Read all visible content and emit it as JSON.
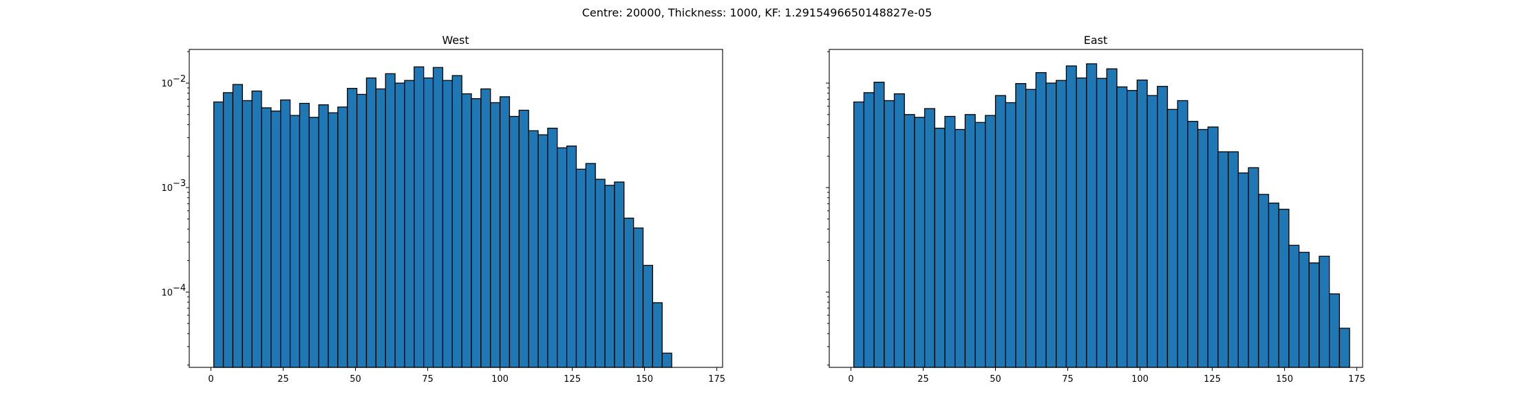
{
  "figure_title": "Centre: 20000, Thickness: 1000, KF: 1.2915496650148827e-05",
  "colors": {
    "bar": "#1f77b4",
    "edge": "#000000"
  },
  "chart_data": [
    {
      "type": "bar",
      "title": "West",
      "xlabel": "",
      "ylabel": "",
      "yscale": "log",
      "xlim": [
        -7.5,
        177
      ],
      "ylim": [
        1.9e-05,
        0.021
      ],
      "xticks": [
        0,
        25,
        50,
        75,
        100,
        125,
        150,
        175
      ],
      "xtick_labels": [
        "0",
        "25",
        "50",
        "75",
        "100",
        "125",
        "150",
        "175"
      ],
      "yticks": [
        0.0001,
        0.001,
        0.01
      ],
      "ytick_labels": [
        "10",
        "10",
        "10"
      ],
      "ytick_exponents": [
        "−4",
        "−3",
        "−2"
      ],
      "grid": false,
      "bin_edges_start": 1,
      "bin_width": 3.3,
      "values": [
        0.0066,
        0.0081,
        0.0097,
        0.0068,
        0.0084,
        0.0058,
        0.0054,
        0.0069,
        0.0049,
        0.0064,
        0.0047,
        0.0062,
        0.0052,
        0.0059,
        0.0089,
        0.0078,
        0.0112,
        0.0088,
        0.0123,
        0.01,
        0.0106,
        0.0143,
        0.0112,
        0.0141,
        0.0106,
        0.0118,
        0.0079,
        0.0071,
        0.0088,
        0.0065,
        0.0074,
        0.0048,
        0.0055,
        0.0035,
        0.0032,
        0.0037,
        0.0024,
        0.0025,
        0.0015,
        0.0017,
        0.0012,
        0.00105,
        0.00113,
        0.00051,
        0.00041,
        0.00018,
        7.9e-05,
        2.6e-05
      ]
    },
    {
      "type": "bar",
      "title": "East",
      "xlabel": "",
      "ylabel": "",
      "yscale": "log",
      "xlim": [
        -7.5,
        177
      ],
      "ylim": [
        1.9e-05,
        0.021
      ],
      "xticks": [
        0,
        25,
        50,
        75,
        100,
        125,
        150,
        175
      ],
      "xtick_labels": [
        "0",
        "25",
        "50",
        "75",
        "100",
        "125",
        "150",
        "175"
      ],
      "yticks": [
        0.0001,
        0.001,
        0.01
      ],
      "ytick_labels": [],
      "ytick_exponents": [],
      "grid": false,
      "bin_edges_start": 1,
      "bin_width": 3.5,
      "values": [
        0.0066,
        0.0081,
        0.0102,
        0.0068,
        0.0079,
        0.005,
        0.0047,
        0.0057,
        0.0037,
        0.0048,
        0.0036,
        0.005,
        0.0042,
        0.0049,
        0.0076,
        0.0065,
        0.0099,
        0.0087,
        0.0126,
        0.01,
        0.0106,
        0.0146,
        0.0112,
        0.0153,
        0.0111,
        0.0137,
        0.0092,
        0.0085,
        0.0107,
        0.0076,
        0.0093,
        0.0056,
        0.0068,
        0.0043,
        0.0036,
        0.0038,
        0.0022,
        0.0022,
        0.00138,
        0.00155,
        0.00086,
        0.00071,
        0.00062,
        0.00028,
        0.00024,
        0.00019,
        0.00022,
        9.6e-05,
        4.5e-05
      ]
    }
  ]
}
